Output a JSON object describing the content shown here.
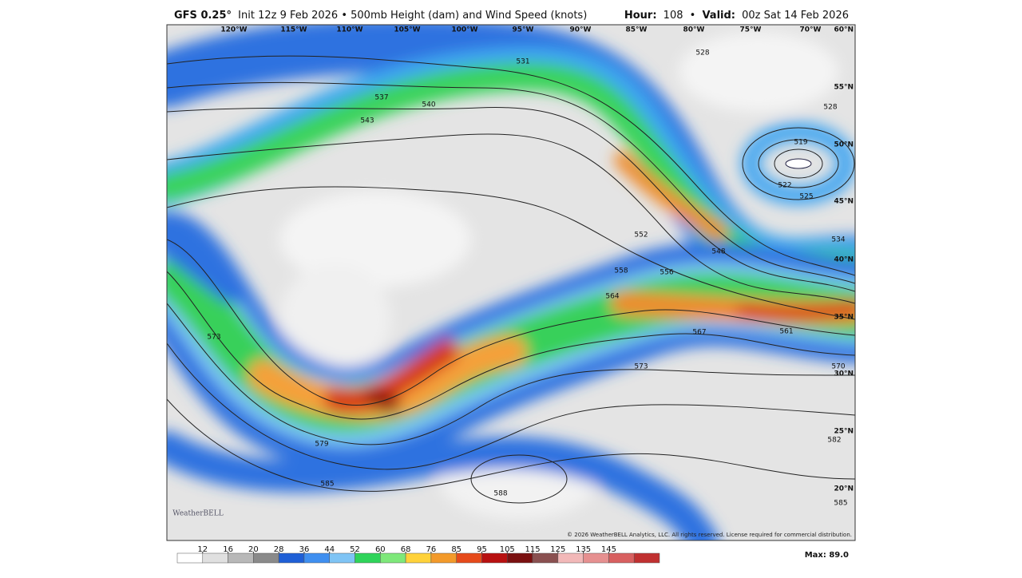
{
  "header": {
    "model": "GFS 0.25°",
    "description": "Init 12z 9 Feb 2026 • 500mb Height (dam) and Wind Speed (knots)",
    "hour_label": "Hour:",
    "hour": "108",
    "separator": "•",
    "valid_label": "Valid:",
    "valid": "00z Sat 14 Feb 2026"
  },
  "map": {
    "lon_labels": [
      "120°W",
      "115°W",
      "110°W",
      "105°W",
      "100°W",
      "95°W",
      "90°W",
      "85°W",
      "80°W",
      "75°W",
      "70°W"
    ],
    "lat_labels": [
      "60°N",
      "55°N",
      "50°N",
      "45°N",
      "40°N",
      "35°N",
      "30°N",
      "25°N",
      "20°N"
    ],
    "contour_labels": [
      531,
      528,
      537,
      540,
      543,
      519,
      528,
      522,
      525,
      534,
      552,
      548,
      558,
      556,
      564,
      567,
      561,
      570,
      573,
      573,
      579,
      585,
      582,
      588,
      585
    ],
    "watermark": "WeatherBELL",
    "copyright": "© 2026 WeatherBELL Analytics, LLC. All rights reserved. License required for commercial distribution."
  },
  "colorbar": {
    "ticks": [
      12,
      16,
      20,
      28,
      36,
      44,
      52,
      60,
      68,
      76,
      85,
      95,
      105,
      115,
      125,
      135,
      145
    ],
    "colors": [
      "#ffffff",
      "#e0e0e0",
      "#b8b8b8",
      "#8a8a8a",
      "#1f5fd6",
      "#3f8ff0",
      "#7fc4f5",
      "#2fd45a",
      "#7ee87a",
      "#ffd23a",
      "#f39a2a",
      "#e64a1a",
      "#b81010",
      "#7a1010",
      "#8a5050",
      "#f2b8b8",
      "#e69090",
      "#d86060",
      "#c03030"
    ],
    "max_label": "Max: 89.0"
  }
}
